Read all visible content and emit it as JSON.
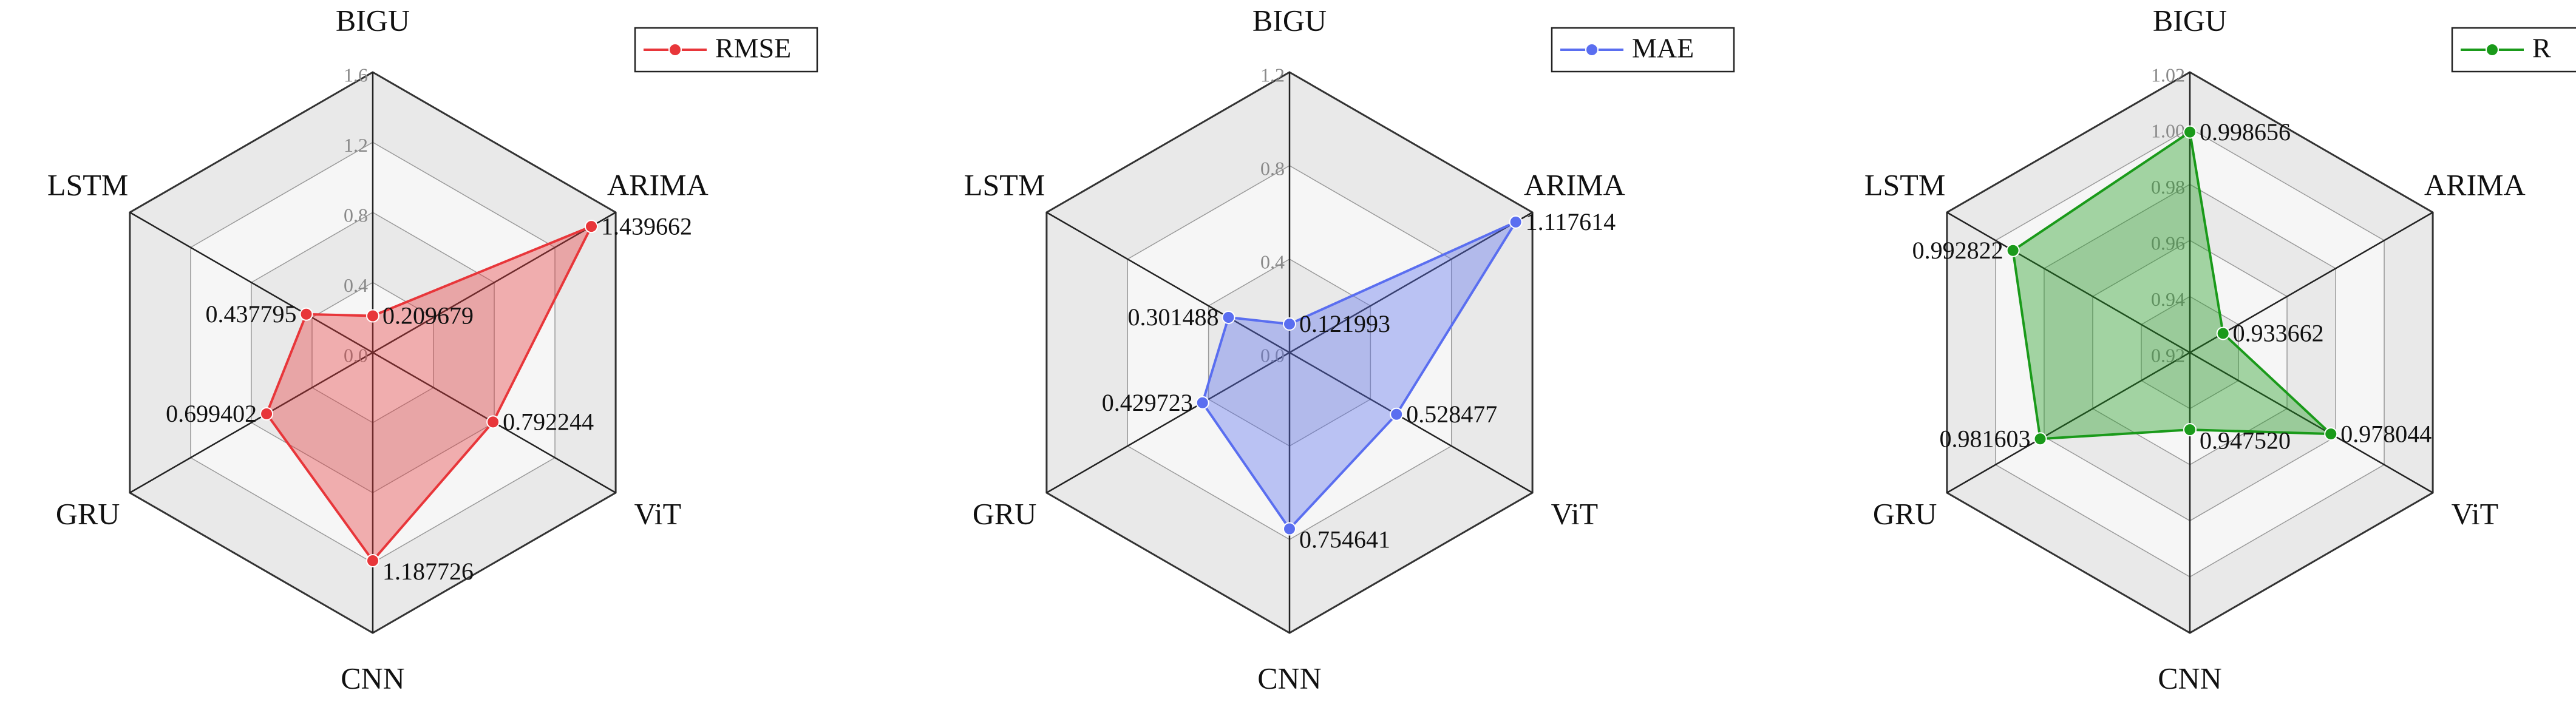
{
  "chart_data": [
    {
      "type": "radar",
      "categories": [
        "BIGU",
        "ARIMA",
        "ViT",
        "CNN",
        "GRU",
        "LSTM"
      ],
      "series": [
        {
          "name": "RMSE",
          "color": "#e8363a",
          "values": [
            0.209679,
            1.439662,
            0.792244,
            1.187726,
            0.699402,
            0.437795
          ],
          "value_labels": [
            "0.209679",
            "1.439662",
            "0.792244",
            "1.187726",
            "0.699402",
            "0.437795"
          ]
        }
      ],
      "ylim": [
        0,
        1.6
      ],
      "yticks": [
        {
          "value": 0,
          "label": "0.0"
        },
        0.4,
        0.8,
        1.2,
        1.6
      ]
    },
    {
      "type": "radar",
      "categories": [
        "BIGU",
        "ARIMA",
        "ViT",
        "CNN",
        "GRU",
        "LSTM"
      ],
      "series": [
        {
          "name": "MAE",
          "color": "#5a6ef0",
          "values": [
            0.121993,
            1.117614,
            0.528477,
            0.754641,
            0.429723,
            0.301488
          ],
          "value_labels": [
            "0.121993",
            "1.117614",
            "0.528477",
            "0.754641",
            "0.429723",
            "0.301488"
          ]
        }
      ],
      "ylim": [
        0,
        1.2
      ],
      "yticks": [
        {
          "value": 0,
          "label": "0.0"
        },
        0.4,
        0.8,
        1.2
      ]
    },
    {
      "type": "radar",
      "categories": [
        "BIGU",
        "ARIMA",
        "ViT",
        "CNN",
        "GRU",
        "LSTM"
      ],
      "series": [
        {
          "name": "R",
          "color": "#1a9a1a",
          "values": [
            0.998656,
            0.933662,
            0.978044,
            0.94752,
            0.981603,
            0.992822
          ],
          "value_labels": [
            "0.998656",
            "0.933662",
            "0.978044",
            "0.947520",
            "0.981603",
            "0.992822"
          ]
        }
      ],
      "ylim": [
        0.92,
        1.02
      ],
      "yticks": [
        0.92,
        0.94,
        0.96,
        0.98,
        {
          "value": 1.0,
          "label": "1.00"
        },
        1.02
      ]
    }
  ]
}
